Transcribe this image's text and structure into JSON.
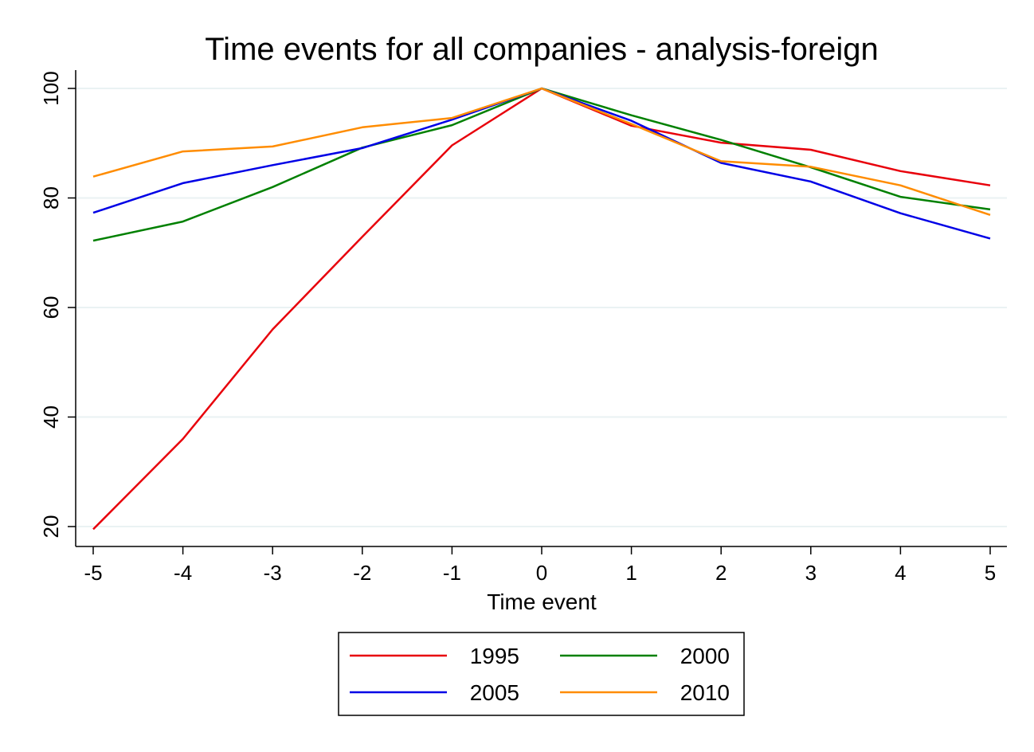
{
  "chart_data": {
    "type": "line",
    "title": "Time events for all companies - analysis-foreign",
    "xlabel": "Time event",
    "ylabel": "",
    "x": [
      -5,
      -4,
      -3,
      -2,
      -1,
      0,
      1,
      2,
      3,
      4,
      5
    ],
    "x_ticks": [
      "-5",
      "-4",
      "-3",
      "-2",
      "-1",
      "0",
      "1",
      "2",
      "3",
      "4",
      "5"
    ],
    "y_ticks": [
      "20",
      "40",
      "60",
      "80",
      "100"
    ],
    "xlim": [
      -5,
      5
    ],
    "ylim": [
      20,
      100
    ],
    "grid": "horizontal",
    "legend_position": "bottom",
    "series": [
      {
        "name": "1995",
        "color": "#e8000b",
        "values": [
          19.5,
          36.0,
          56.0,
          72.9,
          89.6,
          100.0,
          93.2,
          90.1,
          88.8,
          84.9,
          82.3
        ]
      },
      {
        "name": "2000",
        "color": "#008000",
        "values": [
          72.2,
          75.7,
          82.0,
          89.2,
          93.3,
          100.0,
          95.1,
          90.6,
          85.6,
          80.2,
          77.9
        ]
      },
      {
        "name": "2005",
        "color": "#0000e6",
        "values": [
          77.3,
          82.7,
          86.0,
          89.1,
          94.3,
          100.0,
          94.1,
          86.4,
          83.0,
          77.2,
          72.6
        ]
      },
      {
        "name": "2010",
        "color": "#ff8c00",
        "values": [
          83.9,
          88.5,
          89.4,
          92.9,
          94.6,
          100.0,
          93.5,
          86.7,
          85.7,
          82.3,
          76.9
        ]
      }
    ]
  }
}
